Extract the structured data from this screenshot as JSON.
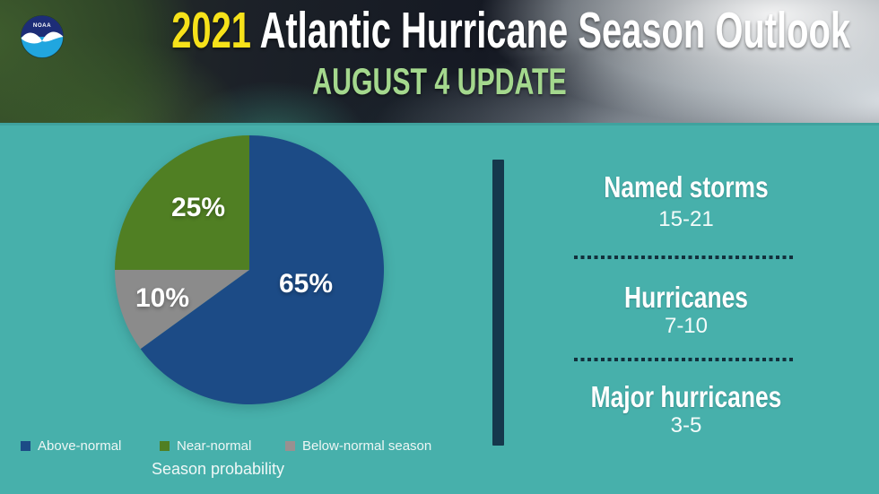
{
  "header": {
    "title_year": "2021",
    "title_rest": " Atlantic Hurricane Season Outlook",
    "subtitle": "AUGUST 4 UPDATE",
    "logo_text": "NOAA"
  },
  "chart_data": {
    "type": "pie",
    "title": "Season probability",
    "units": "%",
    "direction": "clockwise",
    "start_angle_deg": 0,
    "legend_position": "bottom",
    "slices": [
      {
        "label": "Above-normal",
        "value": 65,
        "display": "65%",
        "color": "#1c4b86"
      },
      {
        "label": "Below-normal season",
        "value": 10,
        "display": "10%",
        "color": "#8b8b8b"
      },
      {
        "label": "Near-normal",
        "value": 25,
        "display": "25%",
        "color": "#507f23"
      }
    ],
    "legend": [
      {
        "label": "Above-normal",
        "color": "#1c4b86"
      },
      {
        "label": "Near-normal",
        "color": "#507f23"
      },
      {
        "label": "Below-normal season",
        "color": "#999090"
      }
    ]
  },
  "outlook": {
    "rows": [
      {
        "label": "Named storms",
        "range": "15-21"
      },
      {
        "label": "Hurricanes",
        "range": "7-10"
      },
      {
        "label": "Major hurricanes",
        "range": "3-5"
      }
    ]
  },
  "colors": {
    "background_teal": "#47b0ab",
    "pie_blue": "#1c4b86",
    "pie_green": "#507f23",
    "pie_gray": "#8b8b8b",
    "divider_navy": "#15384c",
    "dotted_line": "#12303c",
    "title_yellow": "#f6e21a",
    "subtitle_green": "#a4d88d",
    "text_white": "#ffffff"
  }
}
